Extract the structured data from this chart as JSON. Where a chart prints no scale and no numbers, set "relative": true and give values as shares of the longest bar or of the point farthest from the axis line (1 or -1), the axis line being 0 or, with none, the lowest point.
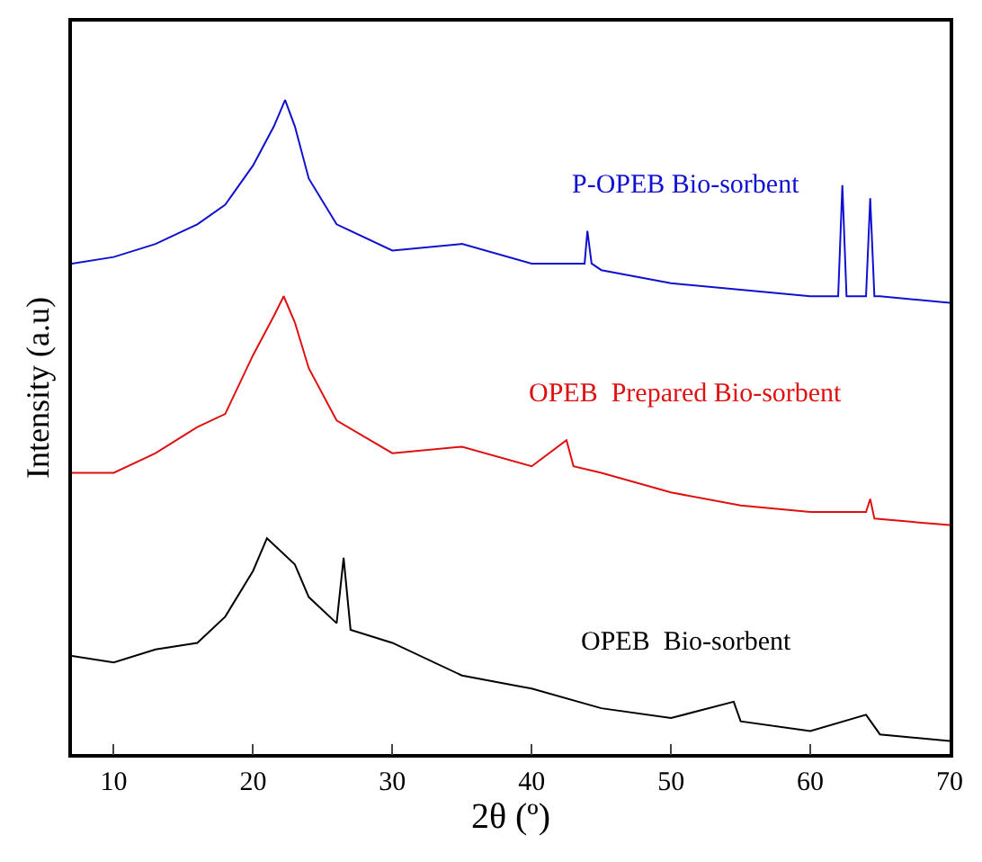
{
  "chart_data": {
    "type": "line",
    "relative": true,
    "xlabel": "2θ (º)",
    "ylabel": "Intensity (a.u)",
    "xlim": [
      7,
      70
    ],
    "xticks": [
      10,
      20,
      30,
      40,
      50,
      60,
      70
    ],
    "tick_labels": "x",
    "legend": false,
    "marker": "none",
    "line_style": "solid",
    "series": [
      {
        "name": "P-OPEB Bio-sorbent",
        "color": "#1010d0",
        "x": [
          7,
          10,
          13,
          16,
          18,
          20,
          21.5,
          22.3,
          23,
          24,
          26,
          30,
          35,
          40,
          43.8,
          44,
          44.3,
          45,
          50,
          55,
          60,
          62,
          62.3,
          62.6,
          63,
          64,
          64.3,
          64.6,
          65,
          70
        ],
        "values": [
          0.75,
          0.76,
          0.78,
          0.81,
          0.84,
          0.9,
          0.96,
          1.0,
          0.96,
          0.88,
          0.81,
          0.77,
          0.78,
          0.75,
          0.75,
          0.8,
          0.75,
          0.74,
          0.72,
          0.71,
          0.7,
          0.7,
          0.87,
          0.7,
          0.7,
          0.7,
          0.85,
          0.7,
          0.7,
          0.69
        ]
      },
      {
        "name": "OPEB  Prepared Bio-sorbent",
        "color": "#e01010",
        "x": [
          7,
          10,
          13,
          16,
          18,
          20,
          21.5,
          22.2,
          23,
          24,
          26,
          30,
          35,
          40,
          42.5,
          43,
          45,
          50,
          55,
          60,
          64,
          64.3,
          64.6,
          70
        ],
        "values": [
          0.43,
          0.43,
          0.46,
          0.5,
          0.52,
          0.61,
          0.67,
          0.7,
          0.66,
          0.59,
          0.51,
          0.46,
          0.47,
          0.44,
          0.48,
          0.44,
          0.43,
          0.4,
          0.38,
          0.37,
          0.37,
          0.39,
          0.36,
          0.35
        ]
      },
      {
        "name": "OPEB  Bio-sorbent",
        "color": "#000000",
        "x": [
          7,
          10,
          13,
          16,
          18,
          20,
          21,
          22,
          23,
          24,
          26,
          26.5,
          27,
          30,
          35,
          40,
          45,
          50,
          54.5,
          55,
          60,
          64,
          65,
          70
        ],
        "values": [
          0.15,
          0.14,
          0.16,
          0.17,
          0.21,
          0.28,
          0.33,
          0.31,
          0.29,
          0.24,
          0.2,
          0.3,
          0.19,
          0.17,
          0.12,
          0.1,
          0.07,
          0.055,
          0.08,
          0.05,
          0.035,
          0.06,
          0.03,
          0.02
        ]
      }
    ]
  }
}
